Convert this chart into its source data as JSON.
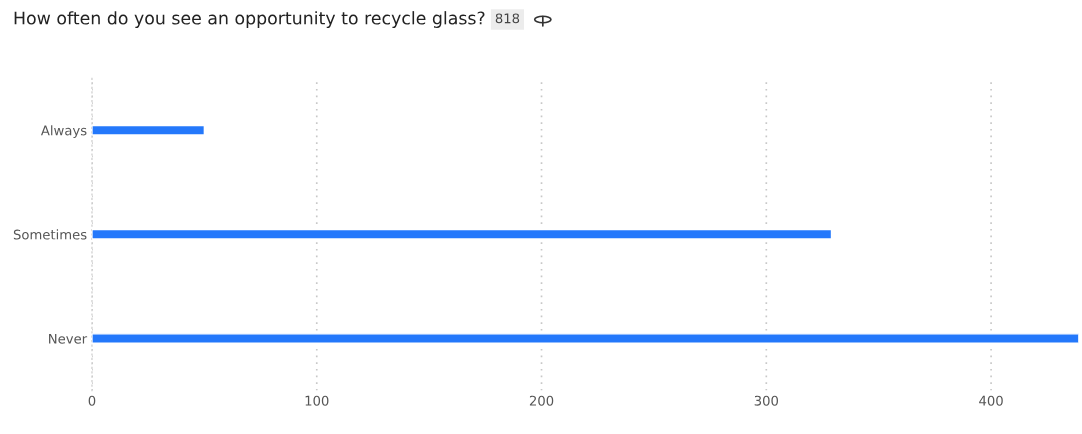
{
  "chart_data": {
    "type": "bar",
    "orientation": "horizontal",
    "title": "How often do you see an opportunity to recycle glass?",
    "annotations": [
      "818"
    ],
    "categories": [
      "Always",
      "Sometimes",
      "Never"
    ],
    "values": [
      50,
      329,
      439
    ],
    "color": "#2478fb",
    "xlim": [
      0,
      439
    ],
    "xticks": [
      0,
      100,
      200,
      300,
      400
    ],
    "grid": "x",
    "legend": false
  }
}
